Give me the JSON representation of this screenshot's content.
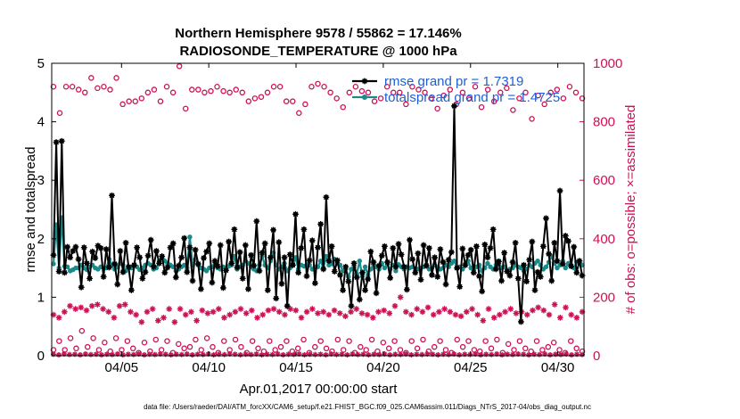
{
  "colors": {
    "rmse": "#000000",
    "spread": "#1a8a8a",
    "obs": "#cc1155",
    "legend_text": "#1f5fd6",
    "axis": "#000000"
  },
  "chart_data": {
    "type": "line",
    "title": "Northern Hemisphere 9578 / 55862 = 17.146%",
    "subtitle": "RADIOSONDE_TEMPERATURE @ 1000 hPa",
    "xlabel": "Apr.01,2017 00:00:00 start",
    "ylabel": "rmse and totalspread",
    "ylabel_right": "# of obs: o=possible; ×=assimilated",
    "footnote": "data file: /Users/raeder/DAI/ATM_forcXX/CAM6_setup/f.e21.FHIST_BGC.f09_025.CAM6assim.011/Diags_NTrS_2017-04/obs_diag_output.nc",
    "xlim": [
      0,
      30.5
    ],
    "ylim": [
      0,
      5
    ],
    "ylim_right": [
      0,
      1000
    ],
    "xticks": [
      {
        "x": 4,
        "label": "04/05"
      },
      {
        "x": 9,
        "label": "04/10"
      },
      {
        "x": 14,
        "label": "04/15"
      },
      {
        "x": 19,
        "label": "04/20"
      },
      {
        "x": 24,
        "label": "04/25"
      },
      {
        "x": 29,
        "label": "04/30"
      }
    ],
    "yticks": [
      0,
      1,
      2,
      3,
      4,
      5
    ],
    "yticks_right": [
      0,
      200,
      400,
      600,
      800,
      1000
    ],
    "legend": {
      "placement": "top-right",
      "entries": [
        "rmse grand pr = 1.7319",
        "totalspread grand pr = 1.4725"
      ]
    },
    "series": [
      {
        "name": "rmse",
        "axis": "left",
        "values": [
          1.72,
          3.65,
          1.44,
          3.67,
          1.42,
          1.86,
          1.68,
          1.79,
          1.86,
          1.65,
          1.17,
          1.85,
          1.58,
          1.32,
          1.78,
          1.67,
          1.88,
          1.84,
          1.35,
          1.82,
          1.51,
          2.74,
          1.57,
          1.22,
          1.79,
          1.43,
          1.93,
          1.52,
          1.12,
          1.55,
          1.85,
          1.68,
          1.32,
          1.43,
          1.71,
          1.98,
          1.52,
          1.79,
          1.58,
          1.7,
          1.42,
          1.51,
          1.85,
          1.92,
          1.34,
          1.54,
          1.68,
          2.01,
          1.43,
          1.85,
          1.28,
          1.81,
          1.57,
          1.14,
          1.67,
          1.78,
          1.92,
          1.25,
          1.62,
          1.53,
          1.89,
          1.16,
          1.46,
          1.95,
          1.58,
          2.16,
          1.51,
          1.77,
          1.32,
          1.89,
          1.14,
          1.72,
          1.54,
          2.3,
          1.45,
          1.76,
          1.92,
          1.12,
          1.68,
          2.15,
          0.98,
          1.94,
          1.23,
          1.68,
          0.85,
          1.73,
          1.55,
          2.42,
          1.42,
          1.84,
          2.16,
          1.36,
          1.63,
          1.97,
          1.24,
          1.85,
          2.25,
          1.48,
          2.71,
          1.62,
          1.87,
          1.44,
          1.63,
          1.38,
          1.12,
          1.52,
          1.27,
          0.85,
          1.58,
          1.34,
          0.96,
          1.42,
          1.12,
          1.31,
          1.78,
          1.6,
          1.07,
          1.54,
          1.71,
          1.87,
          1.6,
          1.33,
          1.84,
          1.52,
          1.91,
          1.73,
          1.52,
          1.13,
          1.98,
          1.65,
          1.42,
          1.75,
          1.3,
          1.89,
          1.54,
          1.84,
          1.38,
          1.68,
          1.35,
          1.82,
          1.6,
          1.22,
          1.64,
          1.77,
          4.27,
          1.5,
          1.18,
          1.83,
          1.55,
          1.72,
          1.81,
          1.42,
          1.87,
          1.36,
          1.1,
          1.9,
          1.68,
          1.84,
          2.16,
          1.48,
          1.61,
          1.28,
          1.76,
          1.44,
          1.37,
          1.6,
          1.93,
          1.32,
          0.58,
          1.55,
          1.27,
          1.64,
          1.95,
          1.12,
          1.43,
          1.35,
          1.87,
          2.35,
          1.74,
          1.28,
          1.93,
          1.62,
          2.82,
          1.57,
          2.05,
          1.96,
          1.53,
          1.86,
          1.42,
          1.62,
          1.37
        ]
      },
      {
        "name": "totalspread",
        "axis": "left",
        "values": [
          1.57,
          2.24,
          1.5,
          2.36,
          1.53,
          1.52,
          1.45,
          1.47,
          1.5,
          1.5,
          1.55,
          1.5,
          1.47,
          1.52,
          1.55,
          1.5,
          1.48,
          1.52,
          1.5,
          1.5,
          1.65,
          1.55,
          1.48,
          1.52,
          1.58,
          1.55,
          1.45,
          1.5,
          1.5,
          1.54,
          1.52,
          1.47,
          1.5,
          1.55,
          1.58,
          1.55,
          1.48,
          1.5,
          1.62,
          1.67,
          1.62,
          1.58,
          1.55,
          1.52,
          1.45,
          1.48,
          1.52,
          1.55,
          1.5,
          2.03,
          1.55,
          1.65,
          1.55,
          1.5,
          1.48,
          1.45,
          1.5,
          1.52,
          1.55,
          1.5,
          1.48,
          1.52,
          1.5,
          1.53,
          1.55,
          1.7,
          1.48,
          1.52,
          1.55,
          1.62,
          1.58,
          1.52,
          1.48,
          1.45,
          1.55,
          1.7,
          1.55,
          1.5,
          1.62,
          1.76,
          1.55,
          1.48,
          1.52,
          1.58,
          1.45,
          1.5,
          1.55,
          1.68,
          1.48,
          1.55,
          1.53,
          1.55,
          1.55,
          1.48,
          1.52,
          1.52,
          1.62,
          1.5,
          1.7,
          1.55,
          1.57,
          1.65,
          1.58,
          1.55,
          1.45,
          1.48,
          1.35,
          1.48,
          1.52,
          1.4,
          1.62,
          1.36,
          1.52,
          1.38,
          1.48,
          1.56,
          1.52,
          1.48,
          1.58,
          1.5,
          1.56,
          1.48,
          1.55,
          1.45,
          1.56,
          1.52,
          1.48,
          1.52,
          1.5,
          1.52,
          1.49,
          1.48,
          1.5,
          1.52,
          1.55,
          1.48,
          1.5,
          1.55,
          1.52,
          1.48,
          1.5,
          1.55,
          1.52,
          1.58,
          1.62,
          1.5,
          1.52,
          1.48,
          1.55,
          1.62,
          1.5,
          1.48,
          1.52,
          1.55,
          1.45,
          1.5,
          1.58,
          1.52,
          1.48,
          1.55,
          1.62,
          1.5,
          1.52,
          1.45,
          1.48,
          1.5,
          1.55,
          1.52,
          1.5,
          1.45,
          1.48,
          1.55,
          1.52,
          1.58,
          1.62,
          1.55,
          1.48,
          1.52,
          1.6,
          1.7,
          1.58,
          1.5,
          1.55,
          1.62,
          1.5,
          1.58,
          1.55,
          1.5,
          1.6,
          1.62,
          1.55
        ]
      },
      {
        "name": "obs_possible",
        "axis": "right",
        "values": [
          920,
          830,
          920,
          920,
          910,
          900,
          950,
          915,
          920,
          910,
          950,
          860,
          870,
          870,
          880,
          900,
          910,
          870,
          920,
          900,
          990,
          845,
          910,
          910,
          900,
          905,
          920,
          905,
          900,
          910,
          900,
          870,
          880,
          885,
          900,
          920,
          920,
          870,
          870,
          830,
          860,
          920,
          930,
          920,
          900,
          880,
          850,
          900,
          920,
          905,
          900,
          870,
          880,
          920,
          900,
          900,
          860,
          920,
          910,
          900,
          880,
          845,
          890,
          910,
          860,
          900,
          880,
          920,
          850,
          910,
          870,
          900,
          915,
          840,
          880,
          900,
          810,
          890,
          860,
          900,
          910,
          880,
          920,
          900,
          880
        ],
        "low_values": [
          20,
          50,
          20,
          60,
          25,
          85,
          30,
          60,
          20,
          45,
          15,
          60,
          20,
          50,
          25,
          10,
          45,
          15,
          55,
          20,
          50,
          10,
          40,
          25,
          30,
          55,
          20,
          60,
          30,
          10,
          50,
          20,
          55,
          30,
          10,
          50,
          25,
          15,
          50,
          20,
          30,
          50,
          15,
          25,
          55,
          10,
          30,
          50,
          25,
          15,
          55,
          20,
          50,
          10,
          30,
          20,
          55,
          15,
          45,
          25,
          50,
          20,
          10,
          50,
          25,
          55,
          15,
          30,
          50,
          20,
          10,
          55,
          30,
          50,
          20,
          15,
          50,
          25,
          55,
          10,
          40,
          20,
          50,
          25,
          15,
          50,
          20,
          30,
          45,
          20,
          10,
          50,
          25,
          15
        ]
      },
      {
        "name": "obs_assimilated",
        "axis": "right",
        "values": [
          140,
          130,
          150,
          170,
          160,
          165,
          155,
          170,
          175,
          160,
          150,
          130,
          170,
          175,
          150,
          140,
          115,
          150,
          160,
          120,
          130,
          160,
          115,
          160,
          140,
          150,
          120,
          155,
          145,
          150,
          160,
          130,
          140,
          150,
          160,
          145,
          155,
          130,
          140,
          155,
          160,
          150,
          140,
          160,
          155,
          130,
          150,
          160,
          145,
          150,
          140,
          155,
          145,
          135,
          150,
          160,
          145,
          140,
          130,
          150,
          155,
          145,
          170,
          200,
          150,
          140,
          160,
          150,
          165,
          140,
          150,
          160,
          150,
          140,
          135,
          150,
          160,
          140,
          120,
          160,
          130,
          140,
          150,
          160,
          145,
          150,
          140,
          155,
          165,
          155,
          140,
          175,
          130,
          165,
          140,
          130,
          150
        ],
        "low_values": [
          5,
          3,
          6,
          4,
          5,
          3,
          6,
          4,
          5,
          3,
          5,
          4,
          6,
          3,
          5,
          4,
          6,
          3,
          5,
          4,
          6,
          5,
          3,
          5,
          4,
          6,
          3,
          5,
          4,
          6,
          3,
          5,
          4,
          6,
          5,
          3,
          5,
          4,
          6,
          3,
          5,
          4,
          6,
          3,
          5,
          4,
          6,
          3,
          5,
          4,
          5,
          3,
          6,
          4,
          5,
          3,
          6,
          4,
          5,
          3,
          5,
          4,
          6,
          3,
          5,
          4,
          6,
          3,
          5,
          4,
          6,
          5,
          3,
          5,
          4,
          6,
          3,
          5,
          4,
          6,
          3,
          5,
          4,
          6,
          3,
          5,
          4,
          6,
          5,
          3,
          5,
          4,
          6,
          3,
          5,
          4,
          6,
          3,
          5,
          4
        ]
      }
    ]
  }
}
